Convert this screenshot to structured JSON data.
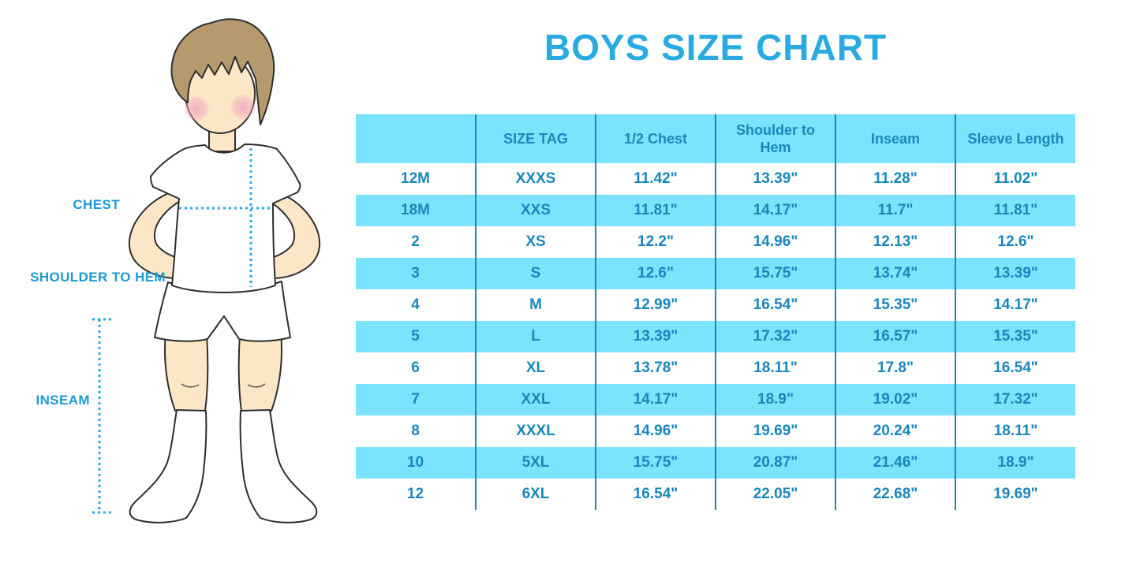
{
  "title": "BOYS SIZE CHART",
  "figure": {
    "labels": {
      "chest": "CHEST",
      "shoulder_to_hem": "SHOULDER TO HEM",
      "inseam": "INSEAM"
    }
  },
  "colors": {
    "title_blue": "#29ABE2",
    "label_blue": "#1B9AD6",
    "row_blue": "#7BE3FB",
    "table_text_blue": "#1A87BC",
    "table_line_blue": "#1C86B8",
    "dotted_line_blue": "#2AA9E2",
    "skin": "#FBE7C6",
    "hair": "#B69A6E",
    "cheek": "#F2A8BE"
  },
  "chart_data": {
    "type": "table",
    "title": "BOYS SIZE CHART",
    "units": "inches",
    "header_background": "light-blue",
    "row_striping": [
      "white",
      "light-blue"
    ],
    "columns": [
      "",
      "SIZE TAG",
      "1/2 Chest",
      "Shoulder to Hem",
      "Inseam",
      "Sleeve Length"
    ],
    "rows": [
      [
        "12M",
        "XXXS",
        "11.42\"",
        "13.39\"",
        "11.28\"",
        "11.02\""
      ],
      [
        "18M",
        "XXS",
        "11.81\"",
        "14.17\"",
        "11.7\"",
        "11.81\""
      ],
      [
        "2",
        "XS",
        "12.2\"",
        "14.96\"",
        "12.13\"",
        "12.6\""
      ],
      [
        "3",
        "S",
        "12.6\"",
        "15.75\"",
        "13.74\"",
        "13.39\""
      ],
      [
        "4",
        "M",
        "12.99\"",
        "16.54\"",
        "15.35\"",
        "14.17\""
      ],
      [
        "5",
        "L",
        "13.39\"",
        "17.32\"",
        "16.57\"",
        "15.35\""
      ],
      [
        "6",
        "XL",
        "13.78\"",
        "18.11\"",
        "17.8\"",
        "16.54\""
      ],
      [
        "7",
        "XXL",
        "14.17\"",
        "18.9\"",
        "19.02\"",
        "17.32\""
      ],
      [
        "8",
        "XXXL",
        "14.96\"",
        "19.69\"",
        "20.24\"",
        "18.11\""
      ],
      [
        "10",
        "5XL",
        "15.75\"",
        "20.87\"",
        "21.46\"",
        "18.9\""
      ],
      [
        "12",
        "6XL",
        "16.54\"",
        "22.05\"",
        "22.68\"",
        "19.69\""
      ]
    ]
  }
}
